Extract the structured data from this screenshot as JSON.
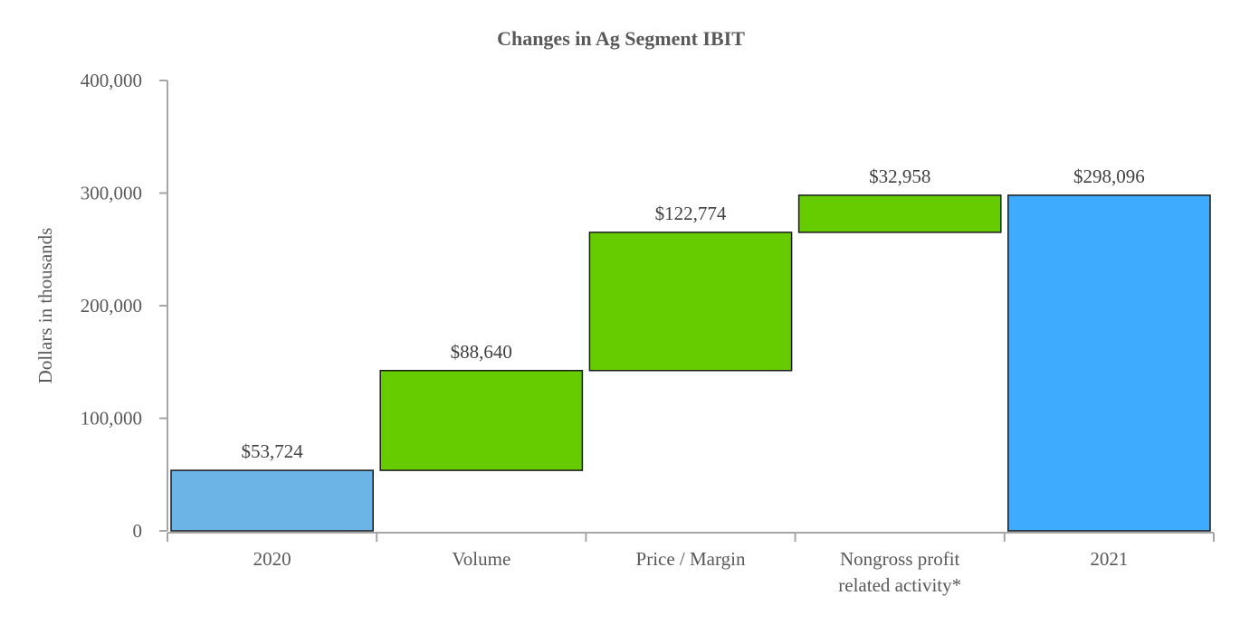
{
  "chart_data": {
    "type": "waterfall",
    "title": "Changes in Ag Segment IBIT",
    "xlabel": "",
    "ylabel": "Dollars in thousands",
    "ylim": [
      0,
      400000
    ],
    "yticks": [
      0,
      100000,
      200000,
      300000,
      400000
    ],
    "ytick_labels": [
      "0",
      "100,000",
      "200,000",
      "300,000",
      "400,000"
    ],
    "grid": false,
    "categories": [
      [
        "2020"
      ],
      [
        "Volume"
      ],
      [
        "Price / Margin"
      ],
      [
        "Nongross profit",
        "related activity*"
      ],
      [
        "2021"
      ]
    ],
    "bars": [
      {
        "kind": "total",
        "start": 0,
        "end": 53724,
        "label": "$53,724",
        "color": "#6cb4e6"
      },
      {
        "kind": "increase",
        "start": 53724,
        "end": 142364,
        "label": "$88,640",
        "color": "#66cc00"
      },
      {
        "kind": "increase",
        "start": 142364,
        "end": 265138,
        "label": "$122,774",
        "color": "#66cc00"
      },
      {
        "kind": "increase",
        "start": 265138,
        "end": 298096,
        "label": "$32,958",
        "color": "#66cc00"
      },
      {
        "kind": "total",
        "start": 0,
        "end": 298096,
        "label": "$298,096",
        "color": "#3fabff"
      }
    ]
  }
}
